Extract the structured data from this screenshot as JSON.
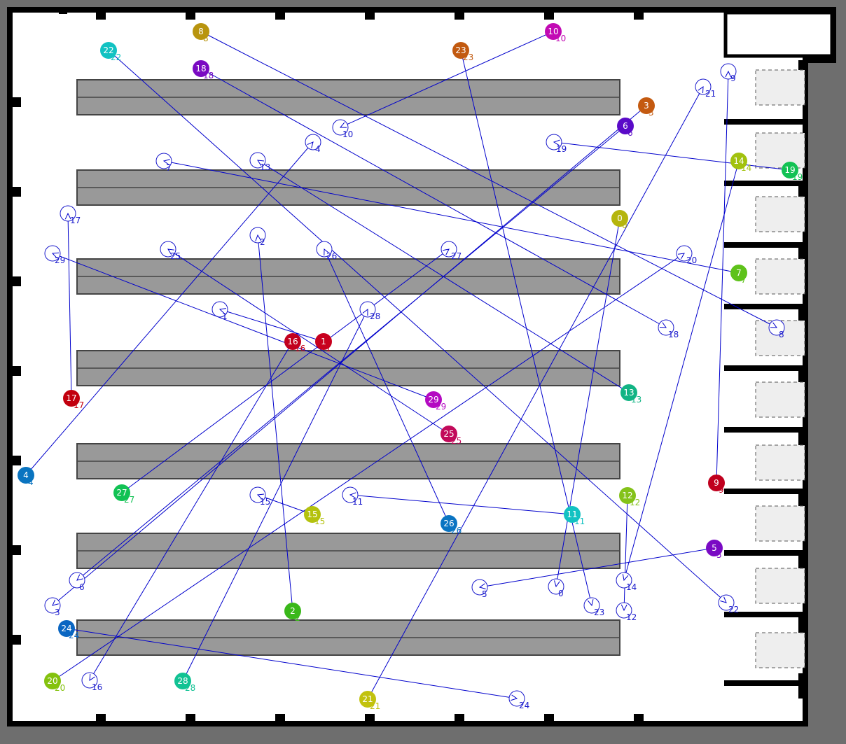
{
  "colors": {
    "background": "#6e6e6e",
    "floor": "#ffffff",
    "wall": "#000000",
    "shelf": "#999999",
    "shelf_border": "#444444",
    "station": "#eeeeee",
    "path": "#0000cc",
    "goal_ring": "#1a1acc"
  },
  "robots": [
    {
      "id": 0,
      "label": "0",
      "color": "#b5b50d"
    },
    {
      "id": 1,
      "label": "1",
      "color": "#c8001e"
    },
    {
      "id": 2,
      "label": "2",
      "color": "#3ab81a"
    },
    {
      "id": 3,
      "label": "3",
      "color": "#c45a10"
    },
    {
      "id": 4,
      "label": "4",
      "color": "#0a74c0"
    },
    {
      "id": 5,
      "label": "5",
      "color": "#7a0ac4"
    },
    {
      "id": 6,
      "label": "6",
      "color": "#5a0ac8"
    },
    {
      "id": 7,
      "label": "7",
      "color": "#5ec21a"
    },
    {
      "id": 8,
      "label": "8",
      "color": "#b8940e"
    },
    {
      "id": 9,
      "label": "9",
      "color": "#c0001e"
    },
    {
      "id": 10,
      "label": "10",
      "color": "#c20ab4"
    },
    {
      "id": 11,
      "label": "11",
      "color": "#12c2c2"
    },
    {
      "id": 12,
      "label": "12",
      "color": "#84c21a"
    },
    {
      "id": 13,
      "label": "13",
      "color": "#12b484"
    },
    {
      "id": 14,
      "label": "14",
      "color": "#a2c20e"
    },
    {
      "id": 15,
      "label": "15",
      "color": "#b4c20e"
    },
    {
      "id": 16,
      "label": "16",
      "color": "#c2001e"
    },
    {
      "id": 17,
      "label": "17",
      "color": "#c2000e"
    },
    {
      "id": 18,
      "label": "18",
      "color": "#7a0ac2"
    },
    {
      "id": 19,
      "label": "19",
      "color": "#12c254"
    },
    {
      "id": 20,
      "label": "20",
      "color": "#84c20e"
    },
    {
      "id": 21,
      "label": "21",
      "color": "#c2c20e"
    },
    {
      "id": 22,
      "label": "22",
      "color": "#12c2c2"
    },
    {
      "id": 23,
      "label": "23",
      "color": "#c25a10"
    },
    {
      "id": 24,
      "label": "24",
      "color": "#0a66c2"
    },
    {
      "id": 25,
      "label": "25",
      "color": "#c20a5a"
    },
    {
      "id": 26,
      "label": "26",
      "color": "#0a74c2"
    },
    {
      "id": 27,
      "label": "27",
      "color": "#12c254"
    },
    {
      "id": 28,
      "label": "28",
      "color": "#12c294"
    },
    {
      "id": 29,
      "label": "29",
      "color": "#b40ac2"
    }
  ]
}
